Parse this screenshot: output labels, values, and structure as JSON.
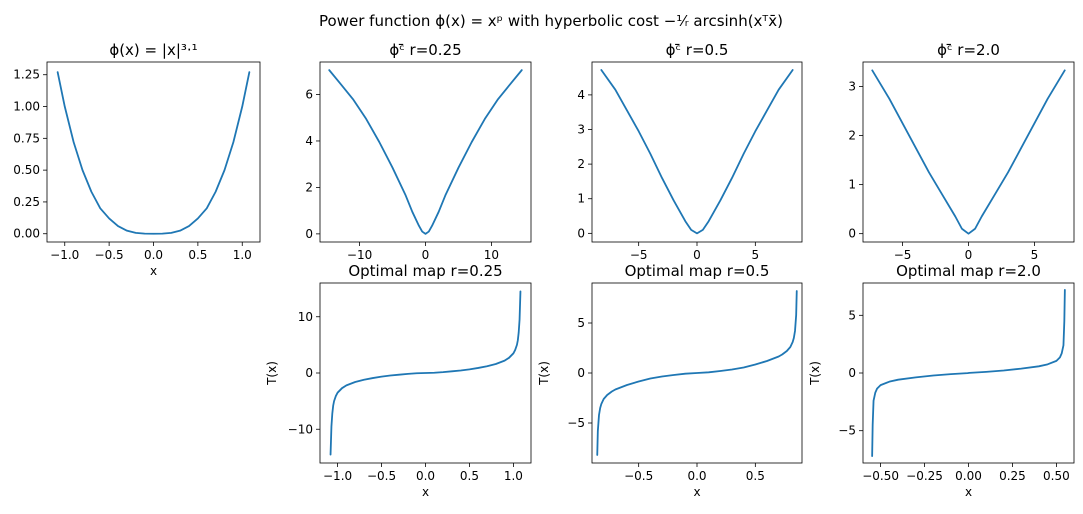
{
  "figure": {
    "suptitle": "Power function ϕ(x) = xᵖ with hyperbolic cost −¹⁄ᵣ arcsinh(xᵀx̄)",
    "line_color": "#1f77b4"
  },
  "chart_data": [
    {
      "type": "line",
      "title": "ϕ(x) = |x|³·¹",
      "xlabel": "x",
      "ylabel": "",
      "xlim": [
        -1.2,
        1.2
      ],
      "ylim": [
        -0.065,
        1.35
      ],
      "xticks": [
        -1.0,
        -0.5,
        0.0,
        0.5,
        1.0
      ],
      "xticklabels": [
        "−1.0",
        "−0.5",
        "0.0",
        "0.5",
        "1.0"
      ],
      "yticks": [
        0.0,
        0.25,
        0.5,
        0.75,
        1.0,
        1.25
      ],
      "yticklabels": [
        "0.00",
        "0.25",
        "0.50",
        "0.75",
        "1.00",
        "1.25"
      ],
      "series": [
        {
          "x": [
            -1.08,
            -1.0,
            -0.9,
            -0.8,
            -0.7,
            -0.6,
            -0.5,
            -0.4,
            -0.3,
            -0.2,
            -0.1,
            0.0,
            0.1,
            0.2,
            0.3,
            0.4,
            0.5,
            0.6,
            0.7,
            0.8,
            0.9,
            1.0,
            1.08
          ],
          "y": [
            1.27,
            1.0,
            0.72,
            0.5,
            0.33,
            0.2,
            0.12,
            0.06,
            0.024,
            0.007,
            0.0008,
            0.0,
            0.0008,
            0.007,
            0.024,
            0.06,
            0.12,
            0.2,
            0.33,
            0.5,
            0.72,
            1.0,
            1.27
          ]
        }
      ]
    },
    {
      "type": "line",
      "title": "ϕᶜ̄ r=0.25",
      "xlabel": "",
      "ylabel": "",
      "xlim": [
        -16,
        16
      ],
      "ylim": [
        -0.35,
        7.4
      ],
      "xticks": [
        -10,
        0,
        10
      ],
      "xticklabels": [
        "−10",
        "0",
        "10"
      ],
      "yticks": [
        0,
        2,
        4,
        6
      ],
      "yticklabels": [
        "0",
        "2",
        "4",
        "6"
      ],
      "series": [
        {
          "x": [
            -14.6,
            -13,
            -11,
            -9,
            -7,
            -5,
            -3,
            -2,
            -1,
            -0.5,
            0,
            0.5,
            1,
            2,
            3,
            5,
            7,
            9,
            11,
            13,
            14.6
          ],
          "y": [
            7.05,
            6.5,
            5.8,
            4.95,
            3.95,
            2.85,
            1.65,
            0.95,
            0.35,
            0.1,
            0.0,
            0.1,
            0.35,
            0.95,
            1.65,
            2.85,
            3.95,
            4.95,
            5.8,
            6.5,
            7.05
          ]
        }
      ]
    },
    {
      "type": "line",
      "title": "ϕᶜ̄ r=0.5",
      "xlabel": "",
      "ylabel": "",
      "xlim": [
        -9,
        9
      ],
      "ylim": [
        -0.25,
        4.95
      ],
      "xticks": [
        -5,
        0,
        5
      ],
      "xticklabels": [
        "−5",
        "0",
        "5"
      ],
      "yticks": [
        0,
        1,
        2,
        3,
        4
      ],
      "yticklabels": [
        "0",
        "1",
        "2",
        "3",
        "4"
      ],
      "series": [
        {
          "x": [
            -8.2,
            -7,
            -6,
            -5,
            -4,
            -3,
            -2,
            -1,
            -0.5,
            0,
            0.5,
            1,
            2,
            3,
            4,
            5,
            6,
            7,
            8.2
          ],
          "y": [
            4.72,
            4.15,
            3.55,
            2.95,
            2.3,
            1.6,
            0.95,
            0.35,
            0.1,
            0.0,
            0.1,
            0.35,
            0.95,
            1.6,
            2.3,
            2.95,
            3.55,
            4.15,
            4.72
          ]
        }
      ]
    },
    {
      "type": "line",
      "title": "ϕᶜ̄ r=2.0",
      "xlabel": "",
      "ylabel": "",
      "xlim": [
        -8,
        8
      ],
      "ylim": [
        -0.17,
        3.5
      ],
      "xticks": [
        -5,
        0,
        5
      ],
      "xticklabels": [
        "−5",
        "0",
        "5"
      ],
      "yticks": [
        0,
        1,
        2,
        3
      ],
      "yticklabels": [
        "0",
        "1",
        "2",
        "3"
      ],
      "series": [
        {
          "x": [
            -7.3,
            -6,
            -5,
            -4,
            -3,
            -2,
            -1,
            -0.5,
            0,
            0.5,
            1,
            2,
            3,
            4,
            5,
            6,
            7.3
          ],
          "y": [
            3.33,
            2.75,
            2.25,
            1.75,
            1.25,
            0.8,
            0.35,
            0.1,
            0.0,
            0.1,
            0.35,
            0.8,
            1.25,
            1.75,
            2.25,
            2.75,
            3.33
          ]
        }
      ]
    },
    null,
    {
      "type": "line",
      "title": "Optimal map  r=0.25",
      "xlabel": "x",
      "ylabel": "T(x)",
      "xlim": [
        -1.2,
        1.2
      ],
      "ylim": [
        -16,
        16
      ],
      "xticks": [
        -1.0,
        -0.5,
        0.0,
        0.5,
        1.0
      ],
      "xticklabels": [
        "−1.0",
        "−0.5",
        "0.0",
        "0.5",
        "1.0"
      ],
      "yticks": [
        -10,
        0,
        10
      ],
      "yticklabels": [
        "−10",
        "0",
        "10"
      ],
      "series": [
        {
          "x": [
            -1.08,
            -1.07,
            -1.06,
            -1.05,
            -1.04,
            -1.02,
            -1.0,
            -0.95,
            -0.9,
            -0.8,
            -0.7,
            -0.6,
            -0.5,
            -0.4,
            -0.3,
            -0.2,
            -0.1,
            0.0,
            0.1,
            0.2,
            0.3,
            0.4,
            0.5,
            0.6,
            0.7,
            0.8,
            0.9,
            0.95,
            1.0,
            1.02,
            1.04,
            1.05,
            1.06,
            1.07,
            1.08
          ],
          "y": [
            -14.5,
            -9.5,
            -7.2,
            -5.8,
            -5.0,
            -4.1,
            -3.5,
            -2.7,
            -2.2,
            -1.6,
            -1.2,
            -0.9,
            -0.65,
            -0.45,
            -0.3,
            -0.15,
            -0.05,
            0.0,
            0.05,
            0.15,
            0.3,
            0.45,
            0.65,
            0.9,
            1.2,
            1.6,
            2.2,
            2.7,
            3.5,
            4.1,
            5.0,
            5.8,
            7.2,
            9.5,
            14.5
          ]
        }
      ]
    },
    {
      "type": "line",
      "title": "Optimal map  r=0.5",
      "xlabel": "x",
      "ylabel": "T(x)",
      "xlim": [
        -0.9,
        0.9
      ],
      "ylim": [
        -9,
        9
      ],
      "xticks": [
        -0.5,
        0.0,
        0.5
      ],
      "xticklabels": [
        "−0.5",
        "0.0",
        "0.5"
      ],
      "yticks": [
        -5,
        0,
        5
      ],
      "yticklabels": [
        "−5",
        "0",
        "5"
      ],
      "series": [
        {
          "x": [
            -0.855,
            -0.85,
            -0.84,
            -0.83,
            -0.82,
            -0.8,
            -0.77,
            -0.73,
            -0.7,
            -0.6,
            -0.5,
            -0.4,
            -0.3,
            -0.2,
            -0.1,
            0.0,
            0.1,
            0.2,
            0.3,
            0.4,
            0.5,
            0.6,
            0.7,
            0.73,
            0.77,
            0.8,
            0.82,
            0.83,
            0.84,
            0.85,
            0.855
          ],
          "y": [
            -8.2,
            -5.8,
            -4.2,
            -3.5,
            -3.1,
            -2.6,
            -2.2,
            -1.85,
            -1.65,
            -1.2,
            -0.85,
            -0.55,
            -0.35,
            -0.2,
            -0.07,
            0.0,
            0.07,
            0.2,
            0.35,
            0.55,
            0.85,
            1.2,
            1.65,
            1.85,
            2.2,
            2.6,
            3.1,
            3.5,
            4.2,
            5.8,
            8.2
          ]
        }
      ]
    },
    {
      "type": "line",
      "title": "Optimal map  r=2.0",
      "xlabel": "x",
      "ylabel": "T(x)",
      "xlim": [
        -0.6,
        0.6
      ],
      "ylim": [
        -7.8,
        7.8
      ],
      "xticks": [
        -0.5,
        -0.25,
        0.0,
        0.25,
        0.5
      ],
      "xticklabels": [
        "−0.50",
        "−0.25",
        "0.00",
        "0.25",
        "0.50"
      ],
      "yticks": [
        -5,
        0,
        5
      ],
      "yticklabels": [
        "−5",
        "0",
        "5"
      ],
      "series": [
        {
          "x": [
            -0.548,
            -0.545,
            -0.54,
            -0.53,
            -0.52,
            -0.5,
            -0.45,
            -0.4,
            -0.3,
            -0.2,
            -0.1,
            -0.005,
            0.005,
            0.1,
            0.2,
            0.3,
            0.4,
            0.45,
            0.5,
            0.52,
            0.53,
            0.54,
            0.545,
            0.548
          ],
          "y": [
            -7.2,
            -4.5,
            -2.4,
            -1.7,
            -1.35,
            -1.05,
            -0.75,
            -0.58,
            -0.38,
            -0.22,
            -0.1,
            -0.01,
            0.01,
            0.1,
            0.22,
            0.38,
            0.58,
            0.75,
            1.05,
            1.35,
            1.7,
            2.4,
            4.5,
            7.2
          ]
        }
      ]
    }
  ]
}
